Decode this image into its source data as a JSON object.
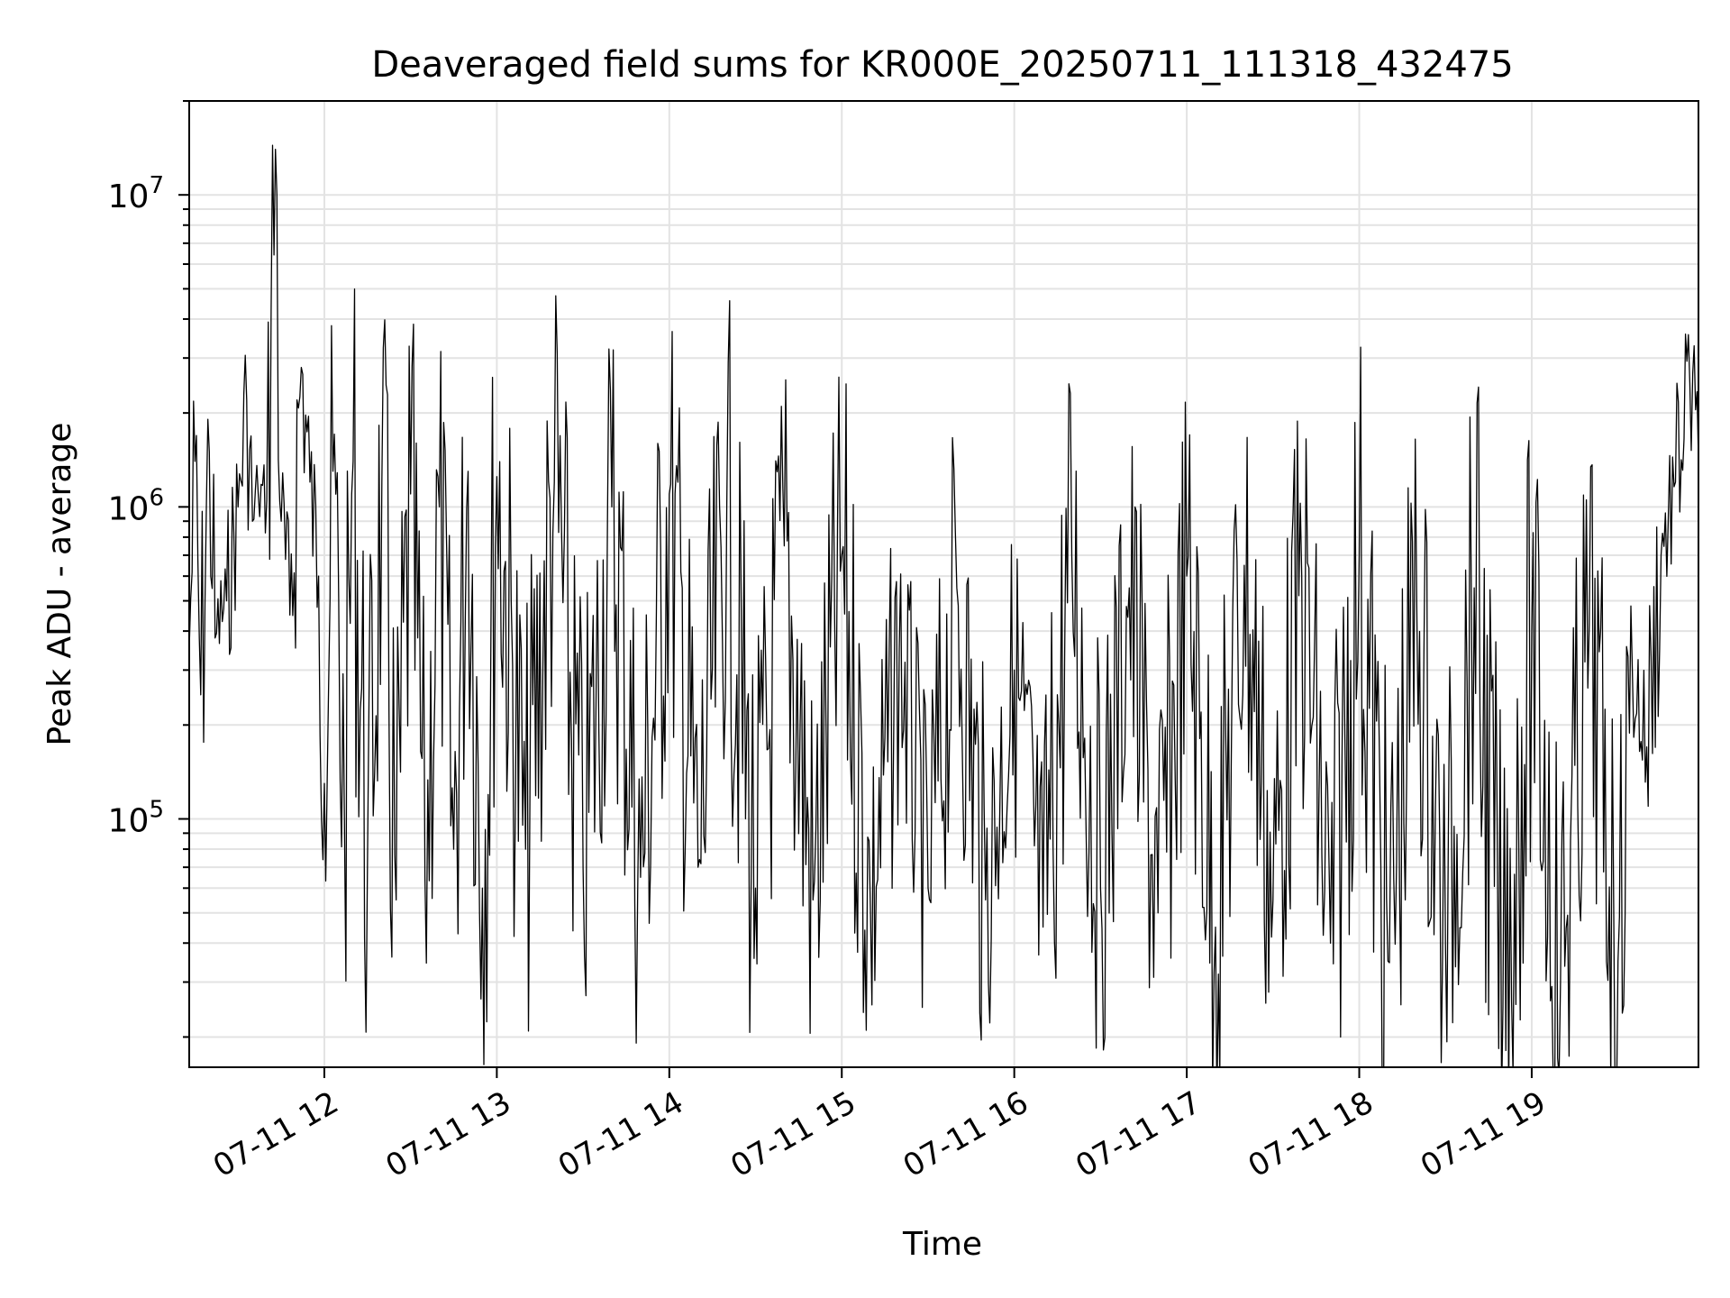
{
  "chart_data": {
    "type": "line",
    "title": "Deaveraged field sums for KR000E_20250711_111318_432475",
    "xlabel": "Time",
    "ylabel": "Peak ADU - average",
    "yscale": "log",
    "ylim": [
      16000,
      20000000
    ],
    "xlim": [
      "2025-07-11 11:13",
      "2025-07-11 19:58"
    ],
    "x_ticks": [
      {
        "value": "2025-07-11 12:00",
        "label": "07-11 12"
      },
      {
        "value": "2025-07-11 13:00",
        "label": "07-11 13"
      },
      {
        "value": "2025-07-11 14:00",
        "label": "07-11 14"
      },
      {
        "value": "2025-07-11 15:00",
        "label": "07-11 15"
      },
      {
        "value": "2025-07-11 16:00",
        "label": "07-11 16"
      },
      {
        "value": "2025-07-11 17:00",
        "label": "07-11 17"
      },
      {
        "value": "2025-07-11 18:00",
        "label": "07-11 18"
      },
      {
        "value": "2025-07-11 19:00",
        "label": "07-11 19"
      }
    ],
    "y_ticks": [
      {
        "value": 100000,
        "base": "10",
        "exp": "5"
      },
      {
        "value": 1000000,
        "base": "10",
        "exp": "6"
      },
      {
        "value": 10000000,
        "base": "10",
        "exp": "7"
      }
    ],
    "grid": true,
    "line_color": "#000000",
    "series": [
      {
        "x": [
          "2025-07-11 11:13",
          "2025-07-11 11:15",
          "2025-07-11 11:17",
          "2025-07-11 11:20",
          "2025-07-11 11:22",
          "2025-07-11 11:26",
          "2025-07-11 11:30",
          "2025-07-11 11:33",
          "2025-07-11 11:35",
          "2025-07-11 11:37",
          "2025-07-11 11:40",
          "2025-07-11 11:43",
          "2025-07-11 11:45",
          "2025-07-11 11:48",
          "2025-07-11 11:52",
          "2025-07-11 11:55",
          "2025-07-11 11:58",
          "2025-07-11 12:00",
          "2025-07-11 12:03",
          "2025-07-11 12:07",
          "2025-07-11 12:10",
          "2025-07-11 12:15",
          "2025-07-11 12:20",
          "2025-07-11 12:25",
          "2025-07-11 12:30",
          "2025-07-11 12:35",
          "2025-07-11 12:40",
          "2025-07-11 12:45",
          "2025-07-11 12:50",
          "2025-07-11 12:55",
          "2025-07-11 13:00",
          "2025-07-11 13:10",
          "2025-07-11 13:20",
          "2025-07-11 13:30",
          "2025-07-11 13:40",
          "2025-07-11 13:50",
          "2025-07-11 14:00",
          "2025-07-11 14:10",
          "2025-07-11 14:20",
          "2025-07-11 14:30",
          "2025-07-11 14:40",
          "2025-07-11 14:50",
          "2025-07-11 15:00",
          "2025-07-11 15:10",
          "2025-07-11 15:20",
          "2025-07-11 15:30",
          "2025-07-11 15:40",
          "2025-07-11 15:50",
          "2025-07-11 16:00",
          "2025-07-11 16:10",
          "2025-07-11 16:20",
          "2025-07-11 16:30",
          "2025-07-11 16:40",
          "2025-07-11 16:50",
          "2025-07-11 17:00",
          "2025-07-11 17:10",
          "2025-07-11 17:20",
          "2025-07-11 17:30",
          "2025-07-11 17:40",
          "2025-07-11 17:50",
          "2025-07-11 18:00",
          "2025-07-11 18:10",
          "2025-07-11 18:20",
          "2025-07-11 18:30",
          "2025-07-11 18:40",
          "2025-07-11 18:50",
          "2025-07-11 19:00",
          "2025-07-11 19:10",
          "2025-07-11 19:20",
          "2025-07-11 19:30",
          "2025-07-11 19:35",
          "2025-07-11 19:40",
          "2025-07-11 19:45",
          "2025-07-11 19:50",
          "2025-07-11 19:55",
          "2025-07-11 19:58"
        ],
        "y": [
          350000,
          1400000,
          250000,
          1500000,
          380000,
          500000,
          1000000,
          2200000,
          900000,
          1100000,
          1050000,
          14000000,
          900000,
          450000,
          2800000,
          1200000,
          600000,
          130000,
          1300000,
          95000,
          1400000,
          70000,
          1200000,
          55000,
          1100000,
          65000,
          1000000,
          80000,
          1300000,
          60000,
          1250000,
          80000,
          1200000,
          70000,
          1000000,
          65000,
          1100000,
          70000,
          1000000,
          60000,
          750000,
          55000,
          700000,
          50000,
          350000,
          60000,
          550000,
          55000,
          300000,
          45000,
          700000,
          60000,
          550000,
          50000,
          600000,
          45000,
          650000,
          55000,
          600000,
          40000,
          700000,
          35000,
          500000,
          40000,
          550000,
          25000,
          400000,
          30000,
          420000,
          35000,
          300000,
          170000,
          700000,
          1200000,
          2500000,
          1400000
        ]
      }
    ]
  }
}
